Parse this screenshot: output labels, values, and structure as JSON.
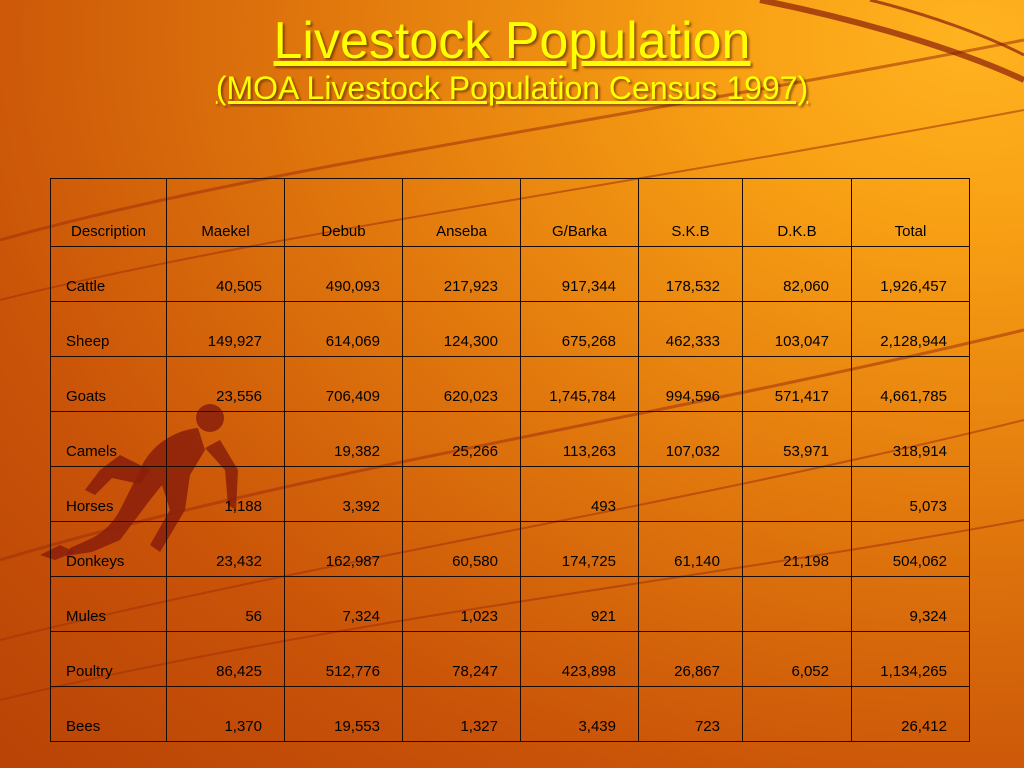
{
  "slide": {
    "title": "Livestock Population",
    "subtitle": "(MOA Livestock Population Census 1997)"
  },
  "table": {
    "headers": [
      "Description",
      "Maekel",
      "Debub",
      "Anseba",
      "G/Barka",
      "S.K.B",
      "D.K.B",
      "Total"
    ],
    "rows": [
      [
        "Cattle",
        "40,505",
        "490,093",
        "217,923",
        "917,344",
        "178,532",
        "82,060",
        "1,926,457"
      ],
      [
        "Sheep",
        "149,927",
        "614,069",
        "124,300",
        "675,268",
        "462,333",
        "103,047",
        "2,128,944"
      ],
      [
        "Goats",
        "23,556",
        "706,409",
        "620,023",
        "1,745,784",
        "994,596",
        "571,417",
        "4,661,785"
      ],
      [
        "Camels",
        "",
        "19,382",
        "25,266",
        "113,263",
        "107,032",
        "53,971",
        "318,914"
      ],
      [
        "Horses",
        "1,188",
        "3,392",
        "",
        "493",
        "",
        "",
        "5,073"
      ],
      [
        "Donkeys",
        "23,432",
        "162,987",
        "60,580",
        "174,725",
        "61,140",
        "21,198",
        "504,062"
      ],
      [
        "Mules",
        "56",
        "7,324",
        "1,023",
        "921",
        "",
        "",
        "9,324"
      ],
      [
        "Poultry",
        "86,425",
        "512,776",
        "78,247",
        "423,898",
        "26,867",
        "6,052",
        "1,134,265"
      ],
      [
        "Bees",
        "1,370",
        "19,553",
        "1,327",
        "3,439",
        "723",
        "",
        "26,412"
      ]
    ]
  },
  "colors": {
    "title": "#ffff00",
    "background_light": "#ffb320",
    "background_dark": "#b84306",
    "decor": "#8a1e0a"
  },
  "icons": {
    "runner": "runner-silhouette-icon"
  }
}
